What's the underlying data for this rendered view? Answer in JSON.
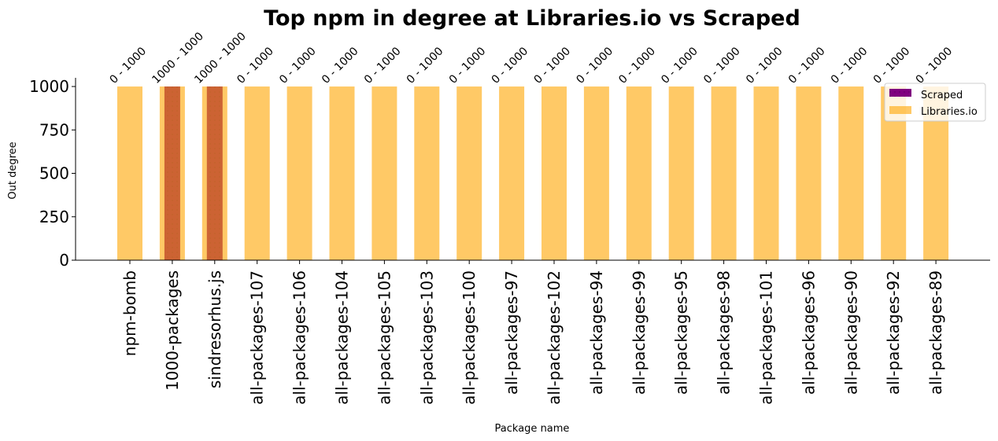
{
  "chart_data": {
    "type": "bar",
    "title": "Top npm in degree at Libraries.io vs Scraped",
    "xlabel": "Package name",
    "ylabel": "Out degree",
    "ylim": [
      0,
      1050
    ],
    "yticks": [
      "0",
      "250",
      "500",
      "750",
      "1000"
    ],
    "categories": [
      "npm-bomb",
      "1000-packages",
      "sindresorhus.js",
      "all-packages-107",
      "all-packages-106",
      "all-packages-104",
      "all-packages-105",
      "all-packages-103",
      "all-packages-100",
      "all-packages-97",
      "all-packages-102",
      "all-packages-94",
      "all-packages-99",
      "all-packages-95",
      "all-packages-98",
      "all-packages-101",
      "all-packages-96",
      "all-packages-90",
      "all-packages-92",
      "all-packages-89"
    ],
    "series": [
      {
        "name": "Scraped",
        "color": "#800080",
        "pattern": "dotted",
        "values": [
          0,
          1000,
          1000,
          0,
          0,
          0,
          0,
          0,
          0,
          0,
          0,
          0,
          0,
          0,
          0,
          0,
          0,
          0,
          0,
          0
        ]
      },
      {
        "name": "Libraries.io",
        "color": "#FFA500",
        "values": [
          1000,
          1000,
          1000,
          1000,
          1000,
          1000,
          1000,
          1000,
          1000,
          1000,
          1000,
          1000,
          1000,
          1000,
          1000,
          1000,
          1000,
          1000,
          1000,
          1000
        ]
      }
    ],
    "annotations": [
      "0 - 1000",
      "1000 - 1000",
      "1000 - 1000",
      "0 - 1000",
      "0 - 1000",
      "0 - 1000",
      "0 - 1000",
      "0 - 1000",
      "0 - 1000",
      "0 - 1000",
      "0 - 1000",
      "0 - 1000",
      "0 - 1000",
      "0 - 1000",
      "0 - 1000",
      "0 - 1000",
      "0 - 1000",
      "0 - 1000",
      "0 - 1000",
      "0 - 1000"
    ],
    "legend_position": "top-right",
    "grid": false
  }
}
